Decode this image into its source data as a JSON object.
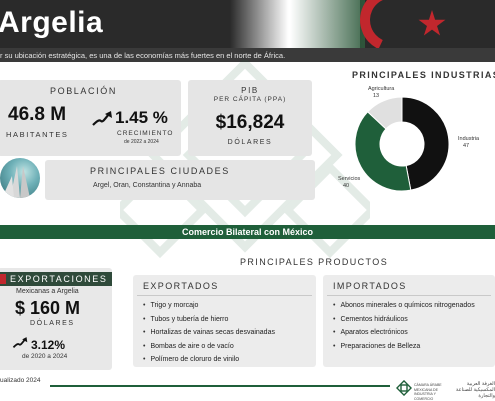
{
  "header": {
    "title": "Argelia",
    "subtitle": "r su ubicación estratégica, es una de las economías más fuertes en el norte de África."
  },
  "poblacion": {
    "title": "POBLACIÓN",
    "habitantes_value": "46.8 M",
    "habitantes_label": "HABITANTES",
    "growth_value": "1.45 %",
    "growth_label": "CRECIMIENTO",
    "growth_period": "de 2022 a 2024"
  },
  "pib": {
    "title_line1": "PIB",
    "title_line2": "PER CÁPITA (PPA)",
    "value": "$16,824",
    "label": "DÓLARES"
  },
  "ciudades": {
    "title": "PRINCIPALES CIUDADES",
    "list": "Argel, Oran, Constantina y Annaba"
  },
  "industrias": {
    "title": "PRINCIPALES INDUSTRIAS"
  },
  "chart_data": {
    "type": "pie",
    "title": "PRINCIPALES INDUSTRIAS",
    "categories": [
      "Industria",
      "Servicios",
      "Agricultura"
    ],
    "values": [
      47,
      40,
      13
    ],
    "labels": [
      "Industria\n47",
      "Servicios\n40",
      "Agricultura\n13"
    ],
    "colors": [
      "#111111",
      "#1f5f3a",
      "#e0e0e0"
    ],
    "donut": true
  },
  "comercio": {
    "title": "Comercio Bilateral con México"
  },
  "exportaciones": {
    "title": "EXPORTACIONES",
    "subtitle": "Mexicanas a Argelia",
    "value": "$ 160 M",
    "label": "DÓLARES",
    "growth_value": "3.12%",
    "growth_period": "de 2020 a 2024"
  },
  "productos": {
    "title": "PRINCIPALES PRODUCTOS",
    "exportados": {
      "title": "EXPORTADOS",
      "items": [
        "Trigo y morcajo",
        "Tubos y tubería de hierro",
        "Hortalizas de vainas secas desvainadas",
        "Bombas de aire o de vacío",
        "Polímero de cloruro de vinilo"
      ]
    },
    "importados": {
      "title": "IMPORTADOS",
      "items": [
        "Abonos minerales o químicos nitrogenados",
        "Cementos hidráulicos",
        "Aparatos electrónicos",
        "Preparaciones de Belleza"
      ]
    }
  },
  "footer": {
    "updated": "ualizado 2024",
    "org": "CÁMARA ÁRABE MEXICANA DE INDUSTRIA Y COMERCIO",
    "org_ar": "الغرفة العربية المكسيكية للصناعة والتجارة"
  },
  "colors": {
    "accent_green": "#1f5f3a",
    "algeria_red": "#c1272d",
    "card_gray": "#e5e5e5"
  }
}
